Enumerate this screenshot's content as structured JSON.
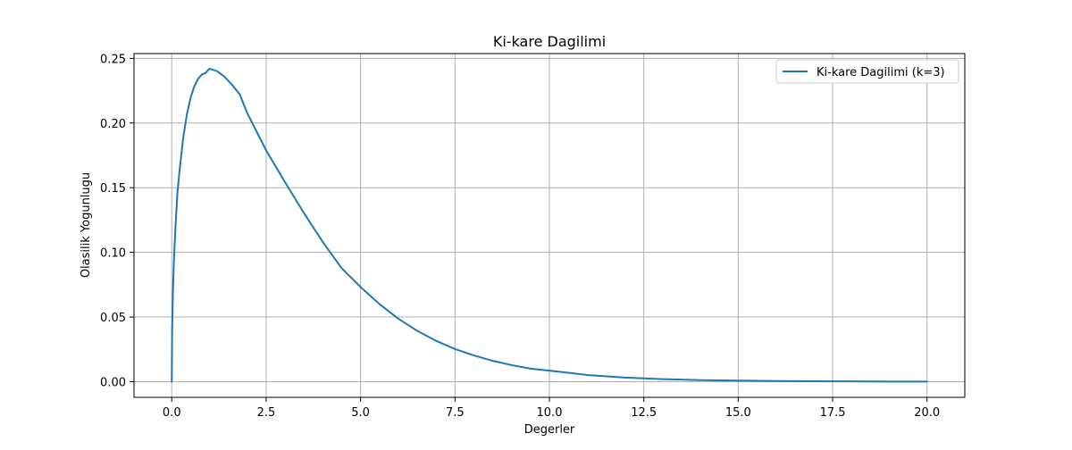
{
  "chart_data": {
    "type": "line",
    "title": "Ki-kare Dagilimi",
    "xlabel": "Degerler",
    "ylabel": "Olasilik Yogunlugu",
    "xlim": [
      -1.0,
      21.0
    ],
    "ylim": [
      -0.0121,
      0.2537
    ],
    "grid": true,
    "legend_position": "upper-right",
    "x_ticks": [
      0.0,
      2.5,
      5.0,
      7.5,
      10.0,
      12.5,
      15.0,
      17.5,
      20.0
    ],
    "x_tick_labels": [
      "0.0",
      "2.5",
      "5.0",
      "7.5",
      "10.0",
      "12.5",
      "15.0",
      "17.5",
      "20.0"
    ],
    "y_ticks": [
      0.0,
      0.05,
      0.1,
      0.15,
      0.2,
      0.25
    ],
    "y_tick_labels": [
      "0.00",
      "0.05",
      "0.10",
      "0.15",
      "0.20",
      "0.25"
    ],
    "series": [
      {
        "name": "Ki-kare Dagilimi (k=3)",
        "color": "#1f77b4",
        "x": [
          0,
          0.01,
          0.03,
          0.06,
          0.1,
          0.15,
          0.2,
          0.3,
          0.4,
          0.5,
          0.6,
          0.7,
          0.8,
          0.9,
          1.0,
          1.2,
          1.4,
          1.6,
          1.8,
          2.0,
          2.5,
          3.0,
          3.5,
          4.0,
          4.5,
          5.0,
          5.5,
          6.0,
          6.5,
          7.0,
          7.5,
          8.0,
          8.5,
          9.0,
          9.5,
          10.0,
          11.0,
          12.0,
          13.0,
          14.0,
          15.0,
          16.0,
          17.0,
          18.0,
          19.0,
          20.0
        ],
        "values": [
          0.0,
          0.0397,
          0.0685,
          0.0956,
          0.1204,
          0.146,
          0.1614,
          0.1878,
          0.2066,
          0.2197,
          0.2286,
          0.2343,
          0.2375,
          0.2388,
          0.242,
          0.2401,
          0.2357,
          0.2295,
          0.2221,
          0.2076,
          0.1788,
          0.1542,
          0.1304,
          0.108,
          0.0877,
          0.0732,
          0.06,
          0.0487,
          0.0393,
          0.0316,
          0.0252,
          0.0203,
          0.0161,
          0.0128,
          0.0101,
          0.0085,
          0.0052,
          0.0032,
          0.002,
          0.0012,
          0.0008,
          0.0005,
          0.0003,
          0.0002,
          0.0001,
          0.0001
        ]
      }
    ]
  }
}
